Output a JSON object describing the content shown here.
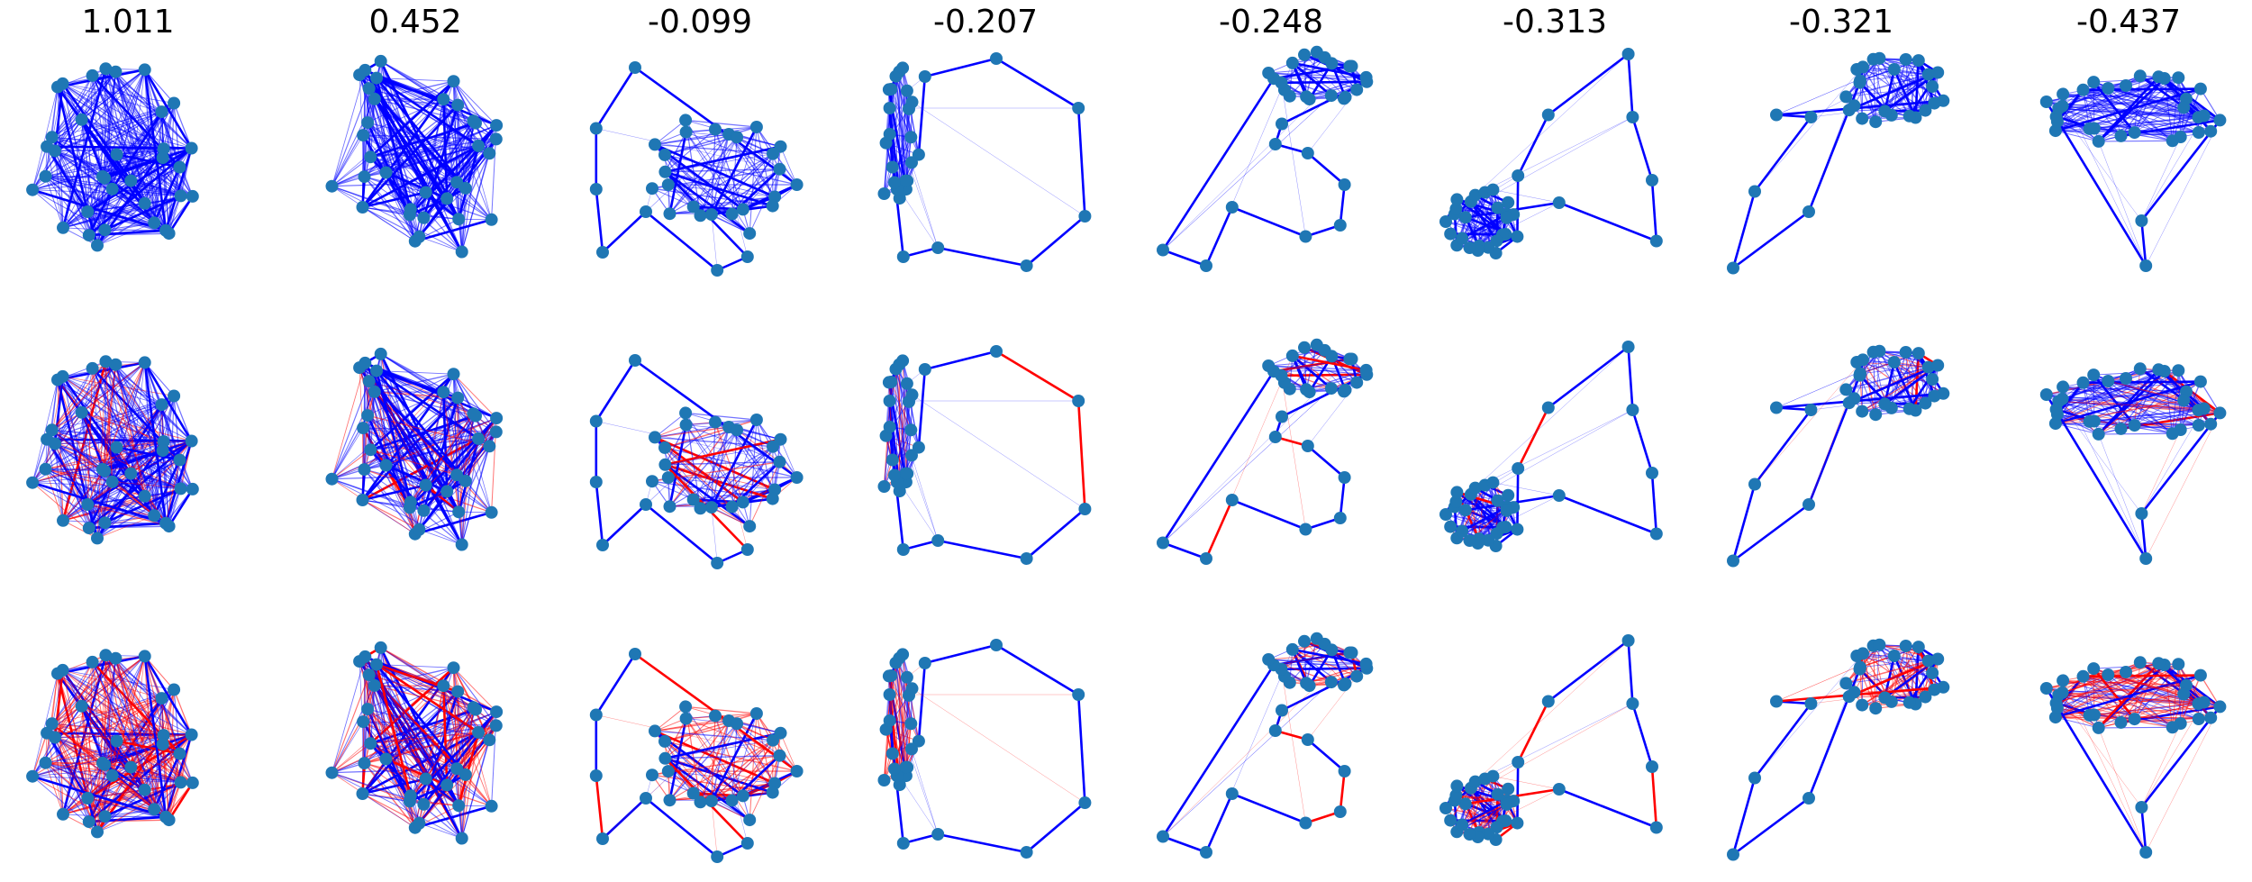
{
  "columns": [
    {
      "title": "1.011",
      "layout": "dense-cluster"
    },
    {
      "title": "0.452",
      "layout": "dense-cluster-sparse"
    },
    {
      "title": "-0.099",
      "layout": "blob-right-with-satellites"
    },
    {
      "title": "-0.207",
      "layout": "left-cluster-with-ring"
    },
    {
      "title": "-0.248",
      "layout": "top-right-cluster-with-path"
    },
    {
      "title": "-0.313",
      "layout": "bottom-left-cluster-with-path"
    },
    {
      "title": "-0.321",
      "layout": "top-right-cluster-with-tail"
    },
    {
      "title": "-0.437",
      "layout": "flat-cluster-with-stem"
    }
  ],
  "rows": [
    {
      "red_fraction": 0.0
    },
    {
      "red_fraction": 0.25
    },
    {
      "red_fraction": 0.6
    }
  ],
  "colors": {
    "node": "#1f77b4",
    "edge_positive": "#0000ff",
    "edge_negative": "#ff0000",
    "background": "#ffffff"
  }
}
